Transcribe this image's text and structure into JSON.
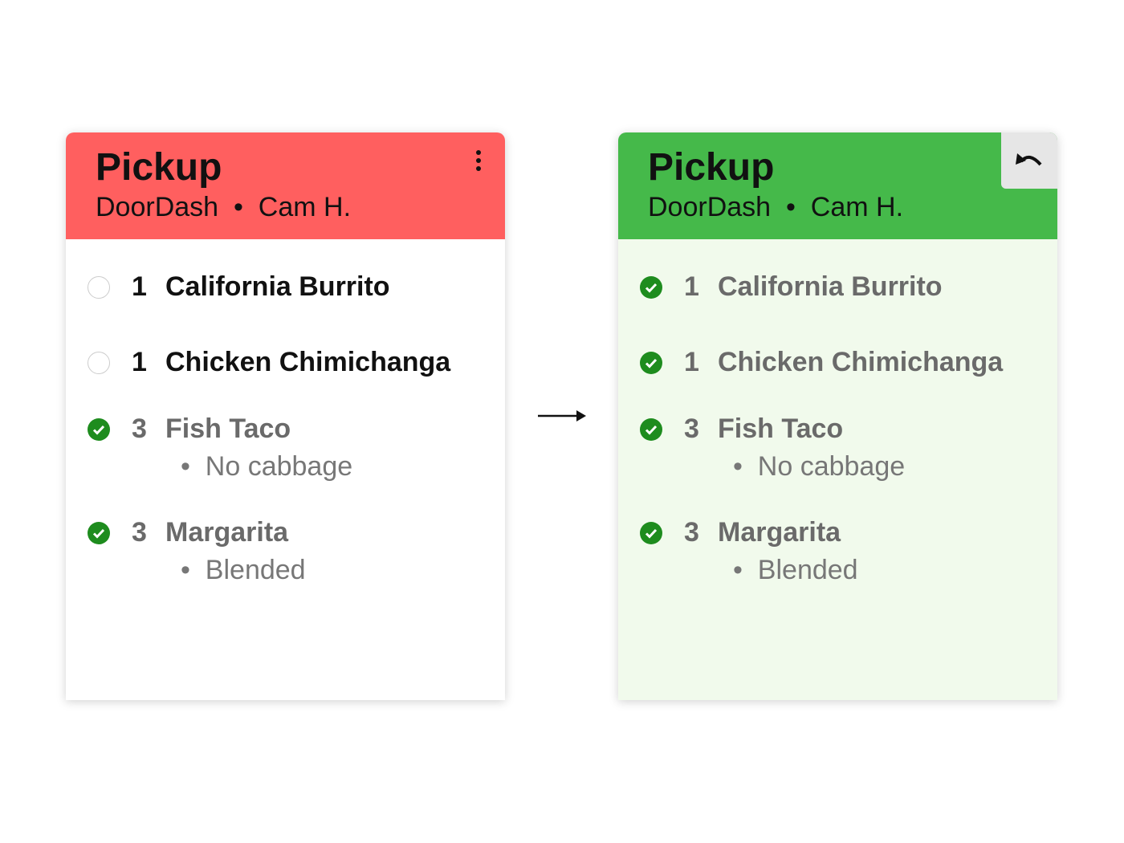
{
  "colors": {
    "pending_header": "#FF5F5F",
    "done_header": "#45B94A",
    "done_body": "#F1FAEC",
    "check": "#1E8C1E"
  },
  "cards": [
    {
      "title": "Pickup",
      "service": "DoorDash",
      "customer": "Cam H.",
      "separator": "•",
      "items": [
        {
          "qty": "1",
          "name": "California Burrito",
          "checked": false
        },
        {
          "qty": "1",
          "name": "Chicken Chimichanga",
          "checked": false
        },
        {
          "qty": "3",
          "name": "Fish Taco",
          "checked": true,
          "modifier": "No cabbage"
        },
        {
          "qty": "3",
          "name": "Margarita",
          "checked": true,
          "modifier": "Blended"
        }
      ]
    },
    {
      "title": "Pickup",
      "service": "DoorDash",
      "customer": "Cam H.",
      "separator": "•",
      "items": [
        {
          "qty": "1",
          "name": "California Burrito",
          "checked": true
        },
        {
          "qty": "1",
          "name": "Chicken Chimichanga",
          "checked": true
        },
        {
          "qty": "3",
          "name": "Fish Taco",
          "checked": true,
          "modifier": "No cabbage"
        },
        {
          "qty": "3",
          "name": "Margarita",
          "checked": true,
          "modifier": "Blended"
        }
      ]
    }
  ],
  "icons": {
    "menu": "more-vertical-icon",
    "undo": "undo-icon",
    "arrow": "arrow-right-icon",
    "check": "check-circle-icon"
  }
}
